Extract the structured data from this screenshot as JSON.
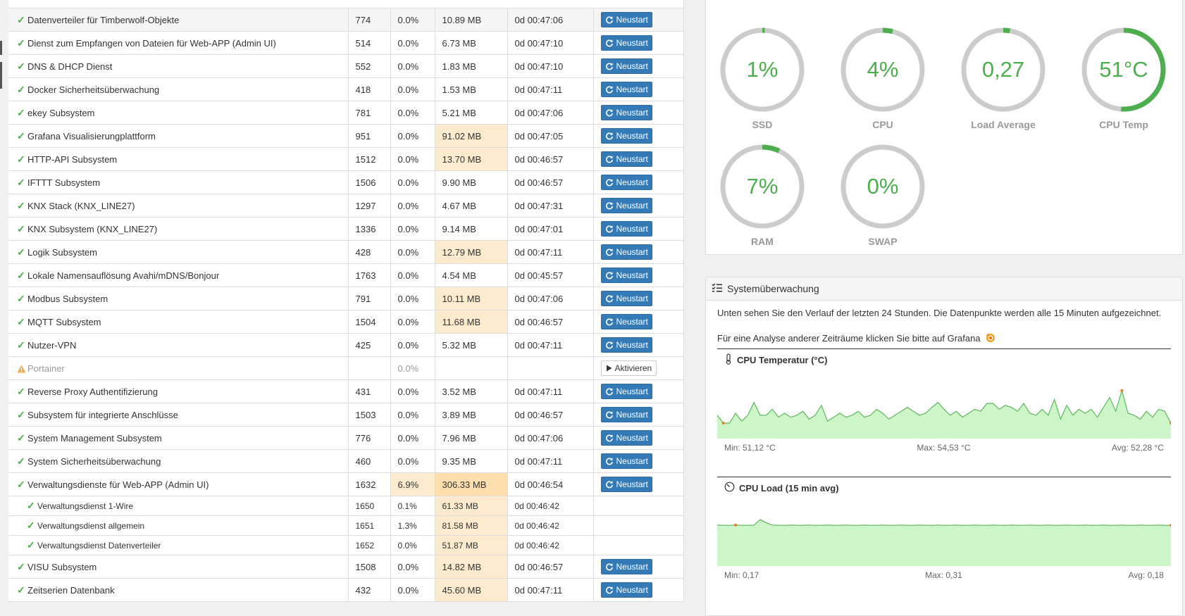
{
  "process_table": {
    "restart_label": "Neustart",
    "activate_label": "Aktivieren",
    "rows": [
      {
        "name": "Datenverteiler für Timberwolf-Objekte",
        "pid": "774",
        "cpu": "0.0%",
        "mem": "10.89 MB",
        "uptime": "0d 00:47:06",
        "status": "ok",
        "action": "restart",
        "mem_hl": true
      },
      {
        "name": "Dienst zum Empfangen von Dateien für Web-APP (Admin UI)",
        "pid": "514",
        "cpu": "0.0%",
        "mem": "6.73 MB",
        "uptime": "0d 00:47:10",
        "status": "ok",
        "action": "restart"
      },
      {
        "name": "DNS & DHCP Dienst",
        "pid": "552",
        "cpu": "0.0%",
        "mem": "1.83 MB",
        "uptime": "0d 00:47:10",
        "status": "ok",
        "action": "restart"
      },
      {
        "name": "Docker Sicherheitsüberwachung",
        "pid": "418",
        "cpu": "0.0%",
        "mem": "1.53 MB",
        "uptime": "0d 00:47:11",
        "status": "ok",
        "action": "restart"
      },
      {
        "name": "ekey Subsystem",
        "pid": "781",
        "cpu": "0.0%",
        "mem": "5.21 MB",
        "uptime": "0d 00:47:06",
        "status": "ok",
        "action": "restart"
      },
      {
        "name": "Grafana Visualisierungplattform",
        "pid": "951",
        "cpu": "0.0%",
        "mem": "91.02 MB",
        "uptime": "0d 00:47:05",
        "status": "ok",
        "action": "restart",
        "mem_hl": true
      },
      {
        "name": "HTTP-API Subsystem",
        "pid": "1512",
        "cpu": "0.0%",
        "mem": "13.70 MB",
        "uptime": "0d 00:46:57",
        "status": "ok",
        "action": "restart",
        "mem_hl": true
      },
      {
        "name": "IFTTT Subsystem",
        "pid": "1506",
        "cpu": "0.0%",
        "mem": "9.90 MB",
        "uptime": "0d 00:46:57",
        "status": "ok",
        "action": "restart"
      },
      {
        "name": "KNX Stack (KNX_LINE27)",
        "pid": "1297",
        "cpu": "0.0%",
        "mem": "4.67 MB",
        "uptime": "0d 00:47:31",
        "status": "ok",
        "action": "restart"
      },
      {
        "name": "KNX Subsystem (KNX_LINE27)",
        "pid": "1336",
        "cpu": "0.0%",
        "mem": "9.14 MB",
        "uptime": "0d 00:47:01",
        "status": "ok",
        "action": "restart"
      },
      {
        "name": "Logik Subsystem",
        "pid": "428",
        "cpu": "0.0%",
        "mem": "12.79 MB",
        "uptime": "0d 00:47:11",
        "status": "ok",
        "action": "restart",
        "mem_hl": true
      },
      {
        "name": "Lokale Namensauflösung Avahi/mDNS/Bonjour",
        "pid": "1763",
        "cpu": "0.0%",
        "mem": "4.54 MB",
        "uptime": "0d 00:45:57",
        "status": "ok",
        "action": "restart"
      },
      {
        "name": "Modbus Subsystem",
        "pid": "791",
        "cpu": "0.0%",
        "mem": "10.11 MB",
        "uptime": "0d 00:47:06",
        "status": "ok",
        "action": "restart",
        "mem_hl": true
      },
      {
        "name": "MQTT Subsystem",
        "pid": "1504",
        "cpu": "0.0%",
        "mem": "11.68 MB",
        "uptime": "0d 00:46:57",
        "status": "ok",
        "action": "restart",
        "mem_hl": true
      },
      {
        "name": "Nutzer-VPN",
        "pid": "425",
        "cpu": "0.0%",
        "mem": "5.32 MB",
        "uptime": "0d 00:47:11",
        "status": "ok",
        "action": "restart"
      },
      {
        "name": "Portainer",
        "pid": "",
        "cpu": "0.0%",
        "mem": "",
        "uptime": "",
        "status": "warn",
        "action": "activate"
      },
      {
        "name": "Reverse Proxy Authentifizierung",
        "pid": "431",
        "cpu": "0.0%",
        "mem": "3.52 MB",
        "uptime": "0d 00:47:11",
        "status": "ok",
        "action": "restart"
      },
      {
        "name": "Subsystem für integrierte Anschlüsse",
        "pid": "1503",
        "cpu": "0.0%",
        "mem": "3.89 MB",
        "uptime": "0d 00:46:57",
        "status": "ok",
        "action": "restart"
      },
      {
        "name": "System Management Subsystem",
        "pid": "776",
        "cpu": "0.0%",
        "mem": "7.96 MB",
        "uptime": "0d 00:47:06",
        "status": "ok",
        "action": "restart"
      },
      {
        "name": "System Sicherheitsüberwachung",
        "pid": "460",
        "cpu": "0.0%",
        "mem": "9.35 MB",
        "uptime": "0d 00:47:11",
        "status": "ok",
        "action": "restart"
      },
      {
        "name": "Verwaltungsdienste für Web-APP (Admin UI)",
        "pid": "1632",
        "cpu": "6.9%",
        "mem": "306.33 MB",
        "uptime": "0d 00:46:54",
        "status": "ok",
        "action": "restart",
        "mem_hl2": true,
        "cpu_hl": true
      },
      {
        "name": "Verwaltungsdienst 1-Wire",
        "pid": "1650",
        "cpu": "0.1%",
        "mem": "61.33 MB",
        "uptime": "0d 00:46:42",
        "status": "ok",
        "action": "none",
        "sub": true,
        "mem_hl": true
      },
      {
        "name": "Verwaltungsdienst allgemein",
        "pid": "1651",
        "cpu": "1.3%",
        "mem": "81.58 MB",
        "uptime": "0d 00:46:42",
        "status": "ok",
        "action": "none",
        "sub": true,
        "mem_hl": true
      },
      {
        "name": "Verwaltungsdienst Datenverteiler",
        "pid": "1652",
        "cpu": "0.0%",
        "mem": "51.87 MB",
        "uptime": "0d 00:46:42",
        "status": "ok",
        "action": "none",
        "sub": true,
        "mem_hl": true
      },
      {
        "name": "VISU Subsystem",
        "pid": "1508",
        "cpu": "0.0%",
        "mem": "14.82 MB",
        "uptime": "0d 00:46:57",
        "status": "ok",
        "action": "restart",
        "mem_hl": true
      },
      {
        "name": "Zeitserien Datenbank",
        "pid": "432",
        "cpu": "0.0%",
        "mem": "45.60 MB",
        "uptime": "0d 00:47:11",
        "status": "ok",
        "action": "restart",
        "mem_hl": true
      }
    ]
  },
  "gauges": [
    {
      "label": "SSD",
      "value": "1%",
      "fraction": 0.01
    },
    {
      "label": "CPU",
      "value": "4%",
      "fraction": 0.04
    },
    {
      "label": "Load Average",
      "value": "0,27",
      "fraction": 0.027
    },
    {
      "label": "CPU Temp",
      "value": "51°C",
      "fraction": 0.51
    },
    {
      "label": "RAM",
      "value": "7%",
      "fraction": 0.07
    },
    {
      "label": "SWAP",
      "value": "0%",
      "fraction": 0.0
    }
  ],
  "monitor": {
    "title": "Systemüberwachung",
    "intro": "Unten sehen Sie den Verlauf der letzten 24 Stunden. Die Datenpunkte werden alle 15 Minuten aufgezeichnet.",
    "grafana_text": "Für eine Analyse anderer Zeiträume klicken Sie bitte auf Grafana",
    "temp": {
      "title": "CPU Temperatur (°C)",
      "min": "Min: 51,12 °C",
      "max": "Max: 54,53 °C",
      "avg": "Avg: 52,28 °C"
    },
    "load": {
      "title": "CPU Load (15 min avg)",
      "min": "Min: 0,17",
      "max": "Max: 0,31",
      "avg": "Avg: 0,18"
    }
  },
  "colors": {
    "accent": "#337ab7",
    "ok": "#4cae4c",
    "gauge_track": "#cccccc",
    "chart_fill": "#ccf5c8",
    "chart_line": "#5cb85c",
    "highlight": "#fcebcd"
  }
}
